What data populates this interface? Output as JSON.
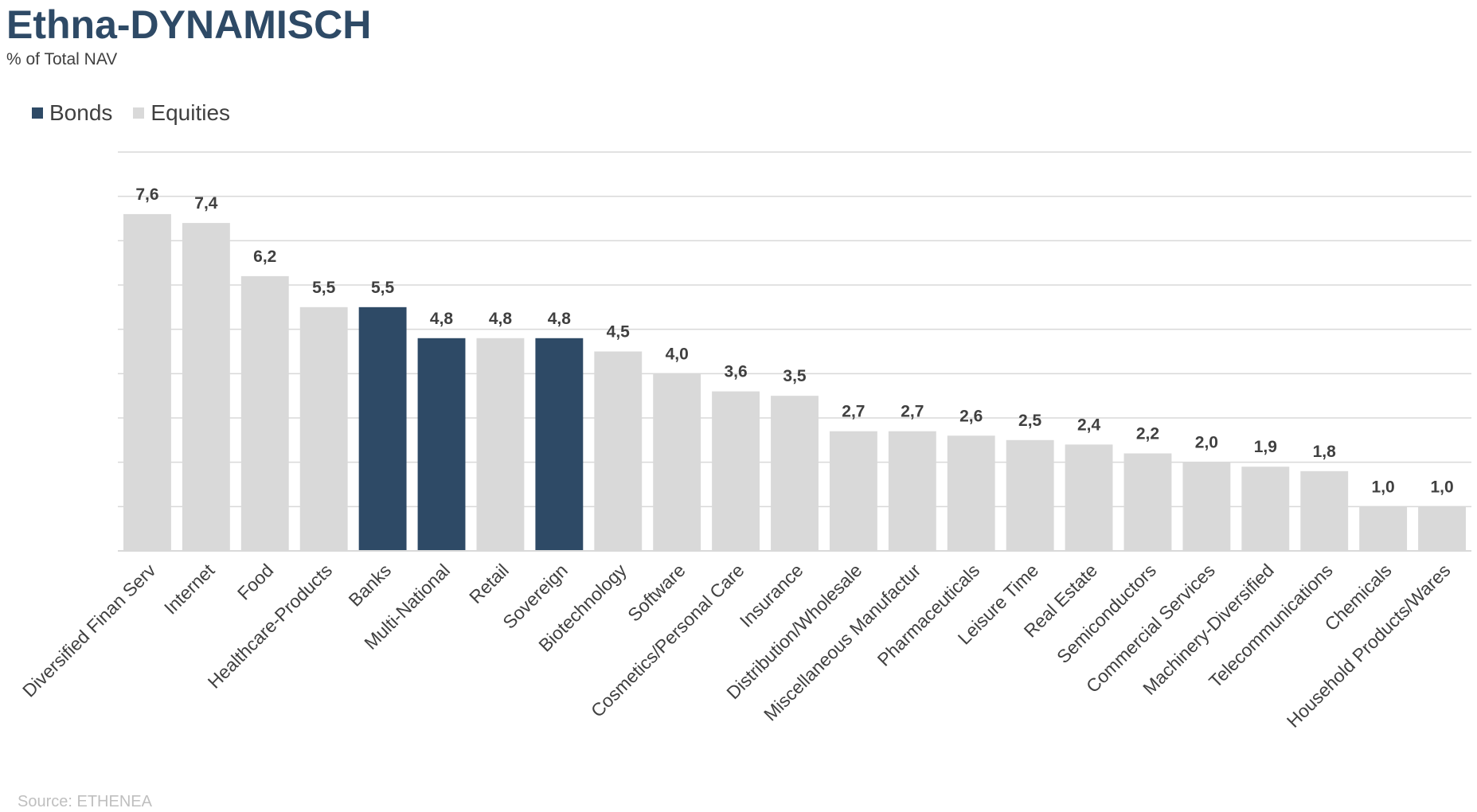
{
  "header": {
    "title": "Ethna-DYNAMISCH",
    "subtitle": "% of Total NAV"
  },
  "legend": {
    "bonds_label": "Bonds",
    "equities_label": "Equities"
  },
  "colors": {
    "bonds": "#2E4A66",
    "equities": "#D9D9D9",
    "grid": "#D9D9D9"
  },
  "source": "Source: ETHENEA",
  "chart_data": {
    "type": "bar",
    "title": "Ethna-DYNAMISCH",
    "subtitle": "% of Total NAV",
    "ylim": [
      0,
      9
    ],
    "grid": true,
    "legend_position": "top-left",
    "categories": [
      "Diversified Finan Serv",
      "Internet",
      "Food",
      "Healthcare-Products",
      "Banks",
      "Multi-National",
      "Retail",
      "Sovereign",
      "Biotechnology",
      "Software",
      "Cosmetics/Personal Care",
      "Insurance",
      "Distribution/Wholesale",
      "Miscellaneous Manufactur",
      "Pharmaceuticals",
      "Leisure Time",
      "Real Estate",
      "Semiconductors",
      "Commercial Services",
      "Machinery-Diversified",
      "Telecommunications",
      "Chemicals",
      "Household Products/Wares"
    ],
    "values": [
      7.6,
      7.4,
      6.2,
      5.5,
      5.5,
      4.8,
      4.8,
      4.8,
      4.5,
      4.0,
      3.6,
      3.5,
      2.7,
      2.7,
      2.6,
      2.5,
      2.4,
      2.2,
      2.0,
      1.9,
      1.8,
      1.0,
      1.0
    ],
    "value_labels": [
      "7,6",
      "7,4",
      "6,2",
      "5,5",
      "5,5",
      "4,8",
      "4,8",
      "4,8",
      "4,5",
      "4,0",
      "3,6",
      "3,5",
      "2,7",
      "2,7",
      "2,6",
      "2,5",
      "2,4",
      "2,2",
      "2,0",
      "1,9",
      "1,8",
      "1,0",
      "1,0"
    ],
    "series_type": [
      "Equities",
      "Equities",
      "Equities",
      "Equities",
      "Bonds",
      "Bonds",
      "Equities",
      "Bonds",
      "Equities",
      "Equities",
      "Equities",
      "Equities",
      "Equities",
      "Equities",
      "Equities",
      "Equities",
      "Equities",
      "Equities",
      "Equities",
      "Equities",
      "Equities",
      "Equities",
      "Equities"
    ]
  }
}
